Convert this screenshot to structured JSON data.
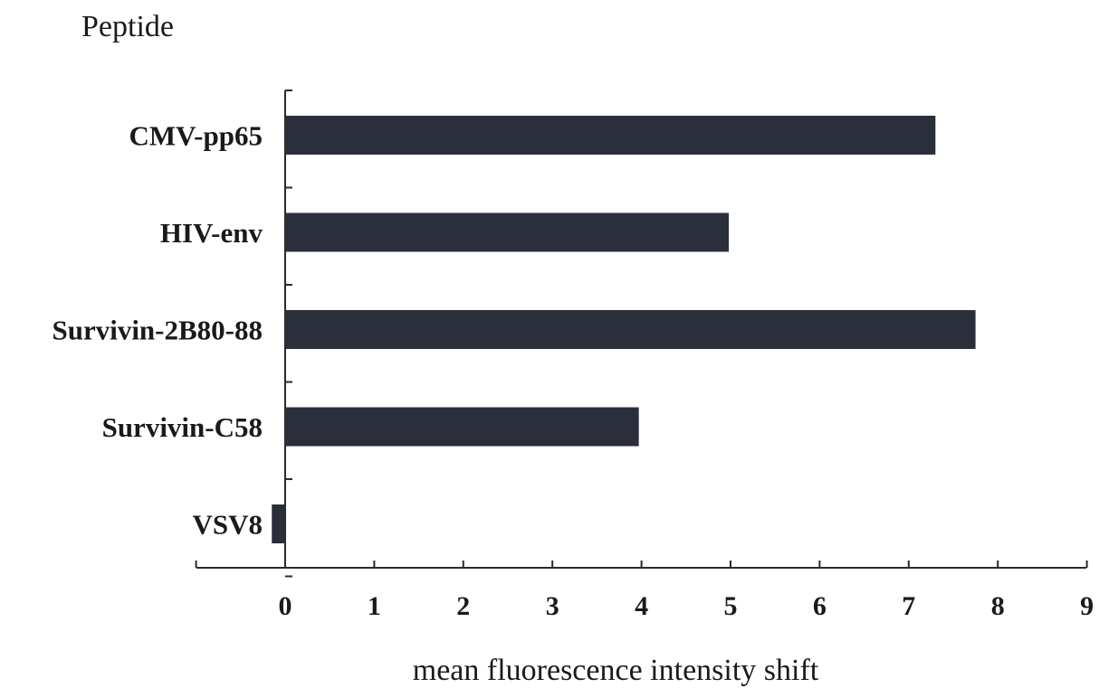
{
  "chart_data": {
    "type": "bar",
    "orientation": "horizontal",
    "title": "Peptide",
    "categories": [
      "CMV-pp65",
      "HIV-env",
      "Survivin-2B80-88",
      "Survivin-C58",
      "VSV8"
    ],
    "values": [
      7.3,
      4.98,
      7.75,
      3.97,
      -0.15
    ],
    "xlabel": "mean fluorescence intensity shift",
    "ylabel": "",
    "xlim": [
      -1,
      9
    ],
    "xticks": [
      0,
      1,
      2,
      3,
      4,
      5,
      6,
      7,
      8,
      9
    ],
    "grid": false,
    "legend": "none",
    "bar_color": "#2b2f3c"
  }
}
